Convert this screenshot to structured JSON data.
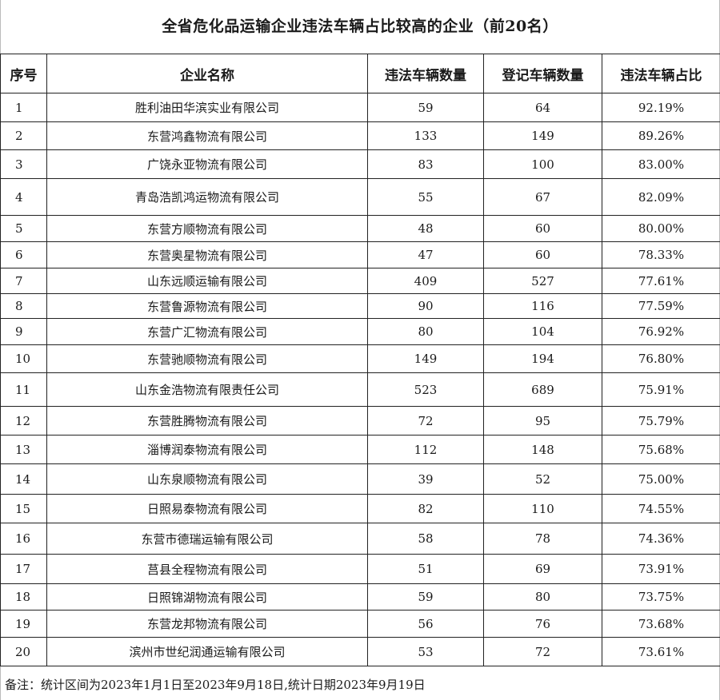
{
  "title": "全省危化品运输企业违法车辆占比较高的企业（前20名）",
  "table": {
    "headers": [
      "序号",
      "企业名称",
      "违法车辆数量",
      "登记车辆数量",
      "违法车辆占比"
    ],
    "rows": [
      [
        "1",
        "胜利油田华滨实业有限公司",
        "59",
        "64",
        "92.19%"
      ],
      [
        "2",
        "东营鸿鑫物流有限公司",
        "133",
        "149",
        "89.26%"
      ],
      [
        "3",
        "广饶永亚物流有限公司",
        "83",
        "100",
        "83.00%"
      ],
      [
        "4",
        "青岛浩凯鸿运物流有限公司",
        "55",
        "67",
        "82.09%"
      ],
      [
        "5",
        "东营方顺物流有限公司",
        "48",
        "60",
        "80.00%"
      ],
      [
        "6",
        "东营奥星物流有限公司",
        "47",
        "60",
        "78.33%"
      ],
      [
        "7",
        "山东远顺运输有限公司",
        "409",
        "527",
        "77.61%"
      ],
      [
        "8",
        "东营鲁源物流有限公司",
        "90",
        "116",
        "77.59%"
      ],
      [
        "9",
        "东营广汇物流有限公司",
        "80",
        "104",
        "76.92%"
      ],
      [
        "10",
        "东营驰顺物流有限公司",
        "149",
        "194",
        "76.80%"
      ],
      [
        "11",
        "山东金浩物流有限责任公司",
        "523",
        "689",
        "75.91%"
      ],
      [
        "12",
        "东营胜腾物流有限公司",
        "72",
        "95",
        "75.79%"
      ],
      [
        "13",
        "淄博润泰物流有限公司",
        "112",
        "148",
        "75.68%"
      ],
      [
        "14",
        "山东泉顺物流有限公司",
        "39",
        "52",
        "75.00%"
      ],
      [
        "15",
        "日照易泰物流有限公司",
        "82",
        "110",
        "74.55%"
      ],
      [
        "16",
        "东营市德瑞运输有限公司",
        "58",
        "78",
        "74.36%"
      ],
      [
        "17",
        "莒县全程物流有限公司",
        "51",
        "69",
        "73.91%"
      ],
      [
        "18",
        "日照锦湖物流有限公司",
        "59",
        "80",
        "73.75%"
      ],
      [
        "19",
        "东营龙邦物流有限公司",
        "56",
        "76",
        "73.68%"
      ],
      [
        "20",
        "滨州市世纪润通运输有限公司",
        "53",
        "72",
        "73.61%"
      ]
    ]
  },
  "note": "备注：统计区间为2023年1月1日至2023年9月18日,统计日期2023年9月19日"
}
